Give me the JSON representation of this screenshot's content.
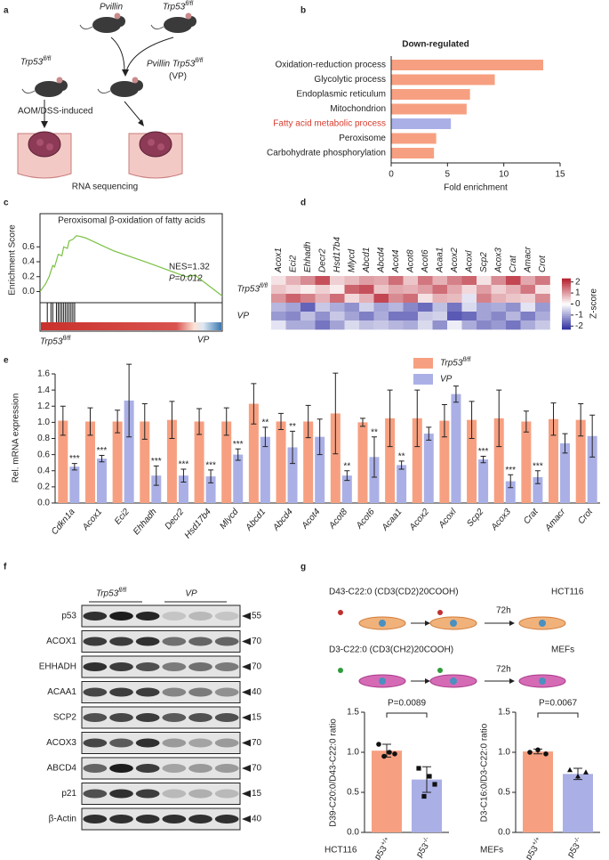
{
  "panel_letters": [
    "a",
    "b",
    "c",
    "d",
    "e",
    "f",
    "g"
  ],
  "panel_a": {
    "parent1": "Pvillin",
    "parent2": "Trp53fl/fl",
    "offspring": "Pvillin Trp53fl/fl",
    "offspring_abbr": "(VP)",
    "control": "Trp53fl/fl",
    "model": "AOM/DSS-induced",
    "assay": "RNA sequencing"
  },
  "western": {
    "groups": [
      "Trp53fl/fl",
      "VP"
    ],
    "proteins": [
      "p53",
      "ACOX1",
      "EHHADH",
      "ACAA1",
      "SCP2",
      "ACOX3",
      "ABCD4",
      "p21",
      "β-Actin"
    ],
    "markers": [
      55,
      70,
      70,
      40,
      15,
      70,
      70,
      15,
      40
    ]
  },
  "panel_g": {
    "hct_label": "D43-C22:0 (CD3(CD2)20COOH)",
    "hct_cell": "HCT116",
    "hct_time": "72h",
    "mef_label": "D3-C22:0 (CD3(CH2)20COOH)",
    "mef_cell": "MEFs",
    "mef_time": "72h"
  },
  "chart_data": [
    {
      "type": "hbar",
      "title": "Down-regulated",
      "categories": [
        "Oxidation-reduction process",
        "Glycolytic process",
        "Endoplasmic reticulum",
        "Mitochondrion",
        "Fatty acid metabolic process",
        "Peroxisome",
        "Carbohydrate phosphorylation"
      ],
      "values": [
        13.5,
        9.2,
        7.0,
        6.7,
        5.3,
        4.0,
        3.8
      ],
      "colors": [
        "#f7a081",
        "#f7a081",
        "#f7a081",
        "#f7a081",
        "#aab0e6",
        "#f7a081",
        "#f7a081"
      ],
      "category_colors": [
        "#222222",
        "#222222",
        "#222222",
        "#222222",
        "#d63c2f",
        "#222222",
        "#222222"
      ],
      "xlabel": "Fold enrichment",
      "xlim": [
        0,
        15
      ],
      "xticks": [
        0,
        5,
        10,
        15
      ]
    },
    {
      "type": "line",
      "title": "Peroxisomal β-oxidation of fatty acids",
      "ylabel": "Enrichment Score",
      "annotations": [
        "NES=1.32",
        "P=0.012"
      ],
      "group_labels": [
        "Trp53fl/fl",
        "VP"
      ],
      "color": "#7ac143",
      "x": [
        0,
        3,
        5,
        7,
        8,
        10,
        12,
        13,
        15,
        16,
        18,
        20,
        22,
        25,
        40,
        60,
        80,
        85,
        100
      ],
      "values": [
        0.0,
        0.1,
        0.2,
        0.35,
        0.33,
        0.5,
        0.48,
        0.6,
        0.58,
        0.68,
        0.7,
        0.75,
        0.74,
        0.72,
        0.55,
        0.38,
        0.2,
        0.22,
        -0.06
      ],
      "hits": [
        4,
        6,
        7,
        9,
        10,
        11,
        12,
        13,
        14,
        15,
        16,
        17,
        18,
        19,
        85
      ],
      "xlim": [
        0,
        100
      ],
      "ylim": [
        -0.15,
        0.95
      ],
      "yticks": [
        {
          "value": 0,
          "label": "0.0"
        },
        0.2,
        0.4,
        0.6
      ]
    },
    {
      "type": "heatmap",
      "columns": [
        "Acox1",
        "Eci2",
        "Ehhadh",
        "Decr2",
        "Hsd17b4",
        "Mlycd",
        "Abcd1",
        "Abcd4",
        "Acot4",
        "Acot8",
        "Acot6",
        "Acaa1",
        "Acox2",
        "Acoxl",
        "Scp2",
        "Acox3",
        "Crat",
        "Amacr",
        "Crot"
      ],
      "group_labels": [
        "Trp53fl/fl",
        "VP"
      ],
      "values": [
        [
          0.3,
          0.8,
          1.2,
          1.8,
          0.5,
          0.7,
          1.0,
          0.9,
          1.5,
          0.6,
          1.4,
          0.8,
          1.3,
          1.6,
          0.3,
          1.2,
          1.9,
          0.9,
          1.4
        ],
        [
          0.6,
          0.4,
          0.2,
          0.5,
          0.2,
          1.6,
          1.8,
          0.6,
          0.9,
          0.8,
          1.0,
          1.5,
          0.9,
          0.4,
          1.0,
          0.5,
          0.8,
          1.4,
          0.3
        ],
        [
          1.1,
          1.6,
          1.3,
          0.8,
          1.5,
          0.4,
          0.8,
          1.9,
          1.2,
          1.5,
          0.3,
          0.8,
          0.7,
          -0.3,
          1.3,
          0.8,
          0.6,
          0.5,
          1.2
        ],
        [
          -0.8,
          -1.0,
          -1.7,
          -0.6,
          -0.9,
          -1.2,
          -0.5,
          -1.0,
          -0.8,
          -1.3,
          -1.6,
          -0.7,
          -1.5,
          -0.4,
          -1.0,
          -0.9,
          -1.2,
          -0.3,
          -1.1
        ],
        [
          -1.1,
          -1.3,
          -0.7,
          -1.2,
          -0.6,
          -1.0,
          -1.4,
          -0.9,
          -1.5,
          -1.5,
          -0.6,
          -0.5,
          -1.8,
          -1.6,
          -1.0,
          -1.3,
          -0.8,
          -1.4,
          -0.9
        ],
        [
          -0.3,
          -0.9,
          -0.9,
          -1.5,
          -1.0,
          -0.4,
          -0.7,
          -0.6,
          -0.8,
          -0.9,
          -0.4,
          -1.2,
          -0.2,
          -0.9,
          -1.3,
          -1.1,
          -1.5,
          -0.9,
          -0.6
        ]
      ],
      "colorbar_label": "Z-score",
      "colors": [
        "#2c2ca0",
        "#ffffff",
        "#b5202e"
      ],
      "zlim": [
        -2.3,
        2.3
      ],
      "zticks": [
        2,
        1,
        0,
        -1,
        -2
      ]
    },
    {
      "type": "grouped_bar",
      "ylabel": "Rel. mRNA expression",
      "categories": [
        "Cdkn1a",
        "Acox1",
        "Eci2",
        "Ehhadh",
        "Decr2",
        "Hsd17b4",
        "Mlycd",
        "Abcd1",
        "Abcd4",
        "Acot4",
        "Acot8",
        "Acot6",
        "Acaa1",
        "Acox2",
        "Acoxl",
        "Scp2",
        "Acox3",
        "Crat",
        "Amacr",
        "Crot"
      ],
      "series": [
        {
          "name": "Trp53fl/fl",
          "color": "#f7a081",
          "values": [
            1.02,
            1.01,
            1.01,
            1.01,
            1.03,
            1.01,
            1.01,
            1.23,
            1.01,
            1.01,
            1.11,
            1.0,
            1.05,
            1.05,
            1.02,
            1.03,
            1.05,
            1.01,
            1.04,
            1.03
          ],
          "errors": [
            0.18,
            0.17,
            0.14,
            0.22,
            0.23,
            0.16,
            0.17,
            0.25,
            0.1,
            0.2,
            0.5,
            0.05,
            0.35,
            0.35,
            0.2,
            0.23,
            0.35,
            0.13,
            0.2,
            0.2
          ]
        },
        {
          "name": "VP",
          "color": "#aab0e6",
          "values": [
            0.45,
            0.55,
            1.27,
            0.34,
            0.34,
            0.33,
            0.6,
            0.82,
            0.69,
            0.82,
            0.34,
            0.57,
            0.47,
            0.86,
            1.35,
            0.54,
            0.27,
            0.32,
            0.74,
            0.83
          ],
          "errors": [
            0.04,
            0.04,
            0.45,
            0.12,
            0.08,
            0.08,
            0.07,
            0.12,
            0.2,
            0.22,
            0.06,
            0.25,
            0.05,
            0.08,
            0.1,
            0.04,
            0.08,
            0.08,
            0.12,
            0.26
          ]
        }
      ],
      "annotations": [
        "***",
        "***",
        null,
        "***",
        "***",
        "***",
        "***",
        "**",
        "**",
        null,
        "**",
        "**",
        "**",
        null,
        null,
        "***",
        "***",
        "***",
        null,
        null
      ],
      "ylim": [
        0,
        1.6
      ],
      "yticks": [
        {
          "value": 0,
          "label": "0.0"
        },
        0.2,
        0.4,
        0.6,
        0.8,
        {
          "value": 1,
          "label": "1.0"
        },
        1.2,
        1.4,
        1.6
      ]
    },
    {
      "type": "bar",
      "ylabel": "D39-C20:0/D43-C22:0 ratio",
      "xlabel": "HCT116",
      "annotation": "P=0.0089",
      "categories": [
        "p53+/+",
        "p53-/-"
      ],
      "values": [
        1.02,
        0.66
      ],
      "errors": [
        0.08,
        0.16
      ],
      "points": [
        [
          1.1,
          0.95,
          1.0,
          0.98
        ],
        [
          0.8,
          0.45,
          0.7,
          0.6
        ]
      ],
      "markers": [
        "circle",
        "square"
      ],
      "colors": [
        "#f7a081",
        "#aab0e6"
      ],
      "ylim": [
        0,
        1.5
      ],
      "yticks": [
        {
          "value": 0,
          "label": "0.0"
        },
        0.5,
        {
          "value": 1,
          "label": "1.0"
        },
        1.5
      ]
    },
    {
      "type": "bar",
      "ylabel": "D3-C16:0/D3-C22:0 ratio",
      "xlabel": "MEFs",
      "annotation": "P=0.0067",
      "categories": [
        "p53+/+",
        "p53-/-"
      ],
      "values": [
        1.01,
        0.73
      ],
      "errors": [
        0.03,
        0.07
      ],
      "points": [
        [
          1.0,
          1.03,
          0.98
        ],
        [
          0.78,
          0.7,
          0.75
        ]
      ],
      "markers": [
        "circle",
        "triangle"
      ],
      "colors": [
        "#f7a081",
        "#aab0e6"
      ],
      "ylim": [
        0,
        1.5
      ],
      "yticks": [
        {
          "value": 0,
          "label": "0.0"
        },
        0.5,
        {
          "value": 1,
          "label": "1.0"
        },
        1.5
      ]
    }
  ]
}
